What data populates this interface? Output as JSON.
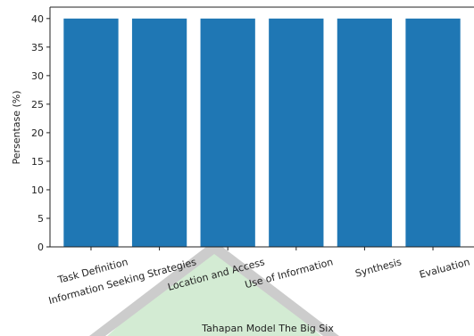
{
  "chart_data": {
    "type": "bar",
    "categories": [
      "Task Definition",
      "Information Seeking Strategies",
      "Location and Access",
      "Use of Information",
      "Synthesis",
      "Evaluation"
    ],
    "values": [
      40,
      40,
      40,
      40,
      40,
      40
    ],
    "title": "",
    "xlabel": "Tahapan Model The Big Six",
    "ylabel": "Persentase (%)",
    "ylim": [
      0,
      42
    ],
    "yticks": [
      0,
      5,
      10,
      15,
      20,
      25,
      30,
      35,
      40
    ],
    "grid": false,
    "bar_color": "#1f77b4",
    "tick_label_rotation_deg": 15
  },
  "watermark": {
    "color": "#9fd59f"
  }
}
